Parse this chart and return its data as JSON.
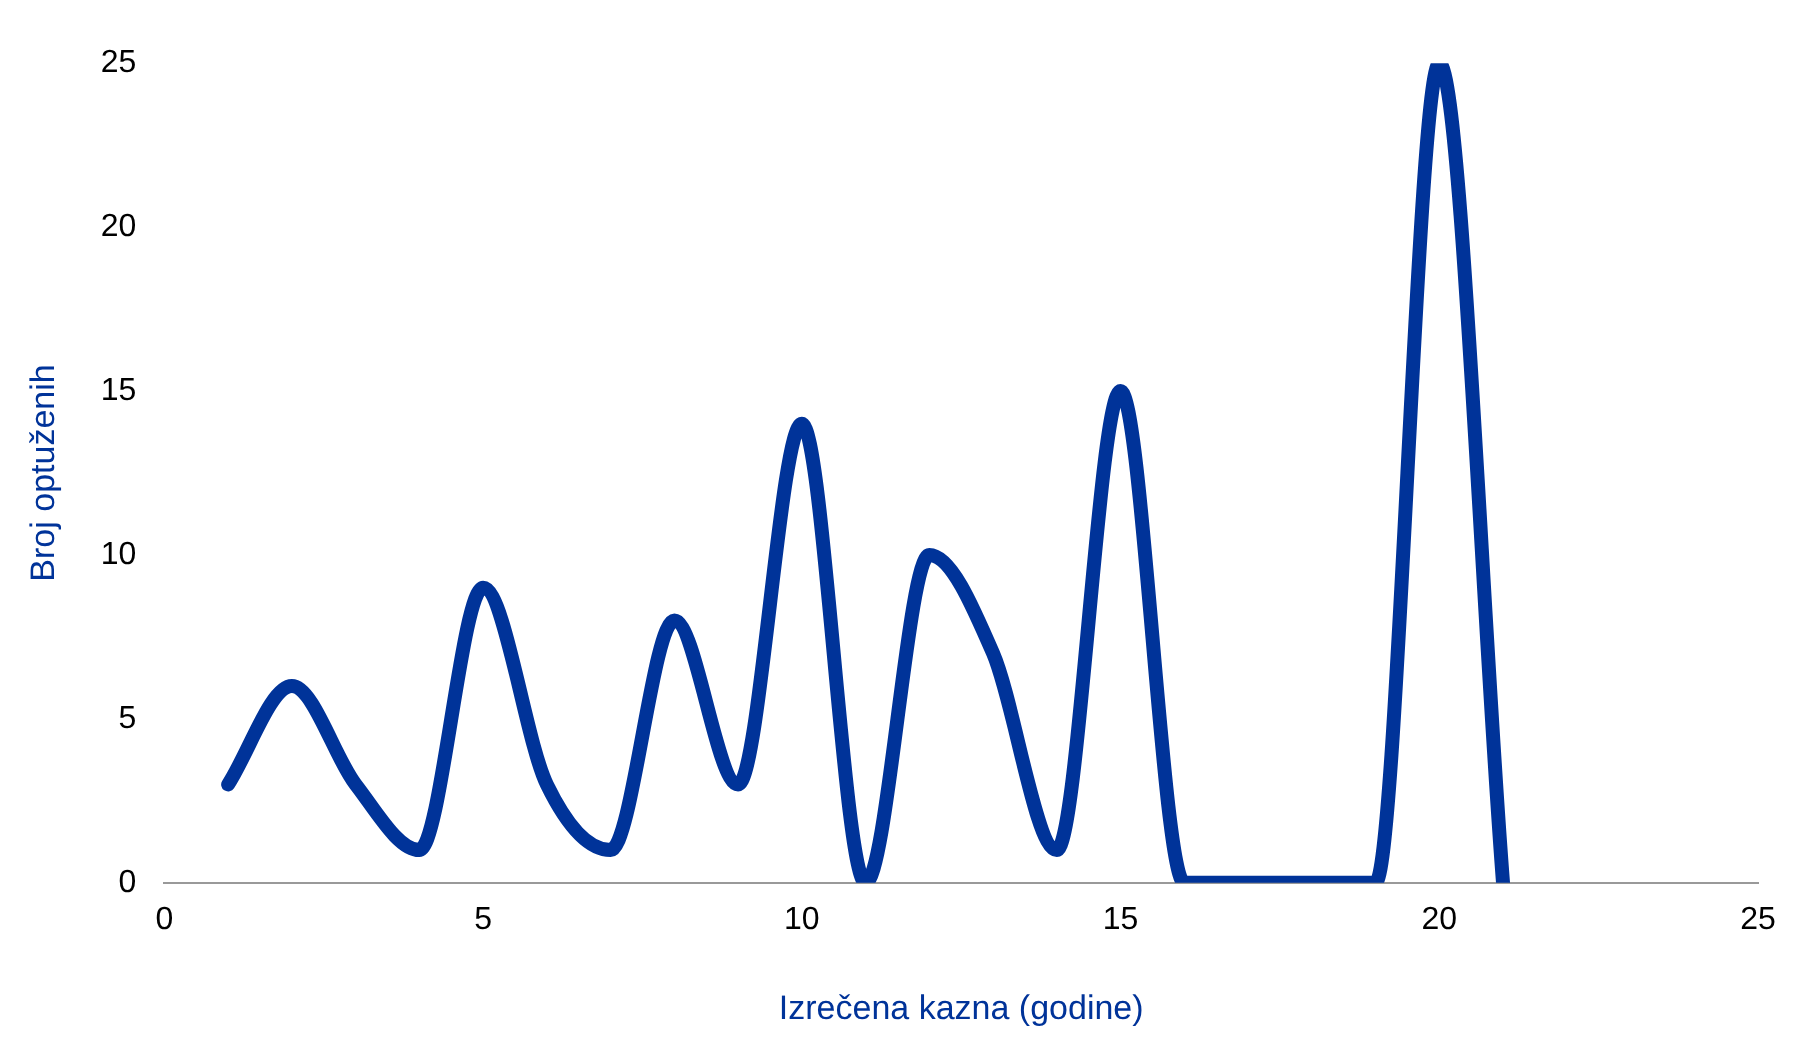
{
  "chart_data": {
    "type": "line",
    "xlabel": "Izrečena kazna (godine)",
    "ylabel": "Broj optuženih",
    "x": [
      1,
      2,
      3,
      4,
      5,
      6,
      7,
      8,
      9,
      10,
      11,
      12,
      13,
      14,
      15,
      16,
      17,
      18,
      19,
      20,
      21
    ],
    "series": [
      {
        "color": "#003399",
        "values": [
          3,
          6,
          3,
          1,
          9,
          3,
          1,
          8,
          3,
          14,
          0,
          10,
          7,
          1,
          15,
          0,
          0,
          0,
          0,
          25,
          0
        ]
      }
    ],
    "xlim": [
      0,
      25
    ],
    "xticks": [
      0,
      5,
      10,
      15,
      20,
      25
    ],
    "ylim": [
      0,
      25
    ],
    "yticks": [
      0,
      5,
      10,
      15,
      20,
      25
    ],
    "grid": false,
    "legend": false,
    "marker": "none",
    "line_style": "solid"
  }
}
